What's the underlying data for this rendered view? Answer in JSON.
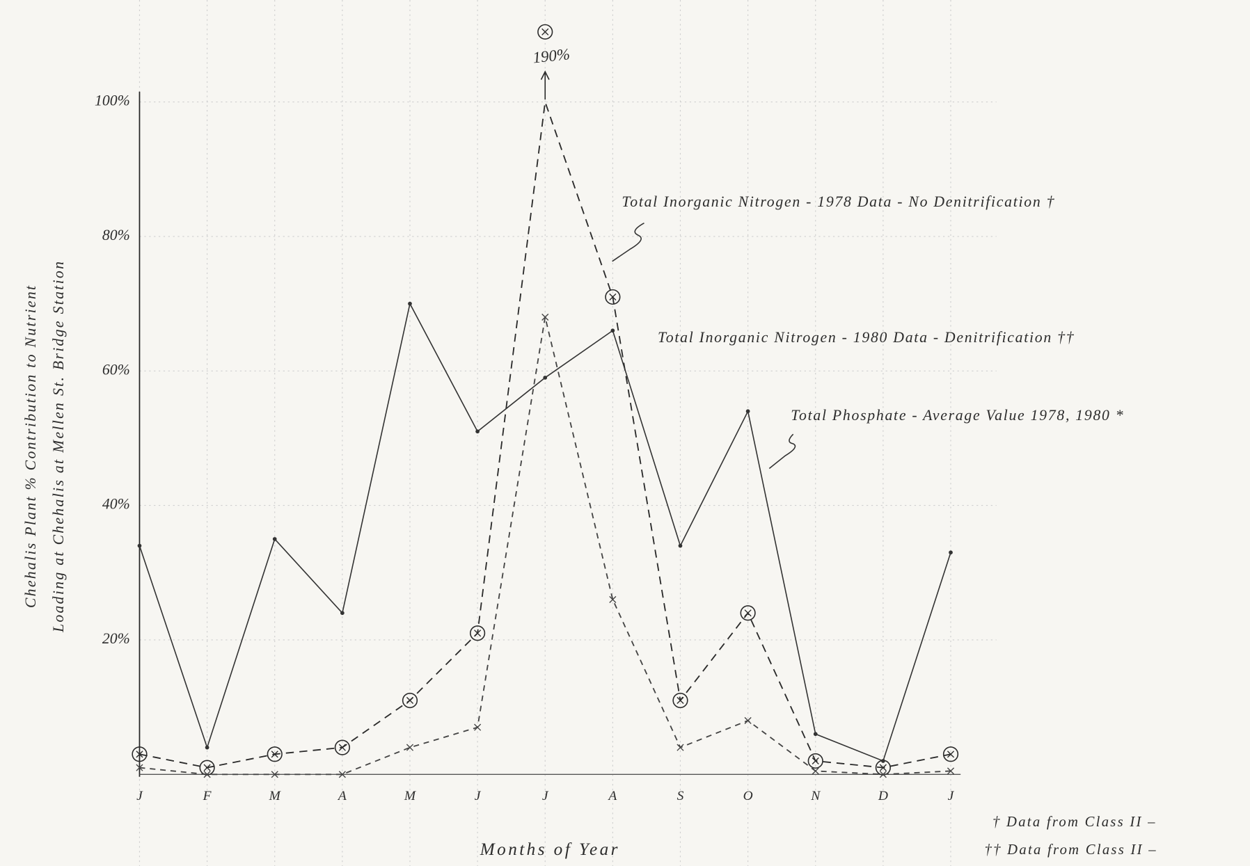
{
  "chart_data": {
    "type": "line",
    "x_label": "Months of Year",
    "y_label": [
      "Chehalis Plant % Contribution to Nutrient",
      "Loading at Chehalis at Mellen St. Bridge Station"
    ],
    "categories": [
      "J",
      "F",
      "M",
      "A",
      "M",
      "J",
      "J",
      "A",
      "S",
      "O",
      "N",
      "D",
      "J"
    ],
    "ylim": [
      0,
      100
    ],
    "yticks": [
      {
        "value": 20,
        "label": "20%"
      },
      {
        "value": 40,
        "label": "40%"
      },
      {
        "value": 60,
        "label": "60%"
      },
      {
        "value": 80,
        "label": "80%"
      },
      {
        "value": 100,
        "label": "100%"
      }
    ],
    "grid": true,
    "series": [
      {
        "name": "Total Inorganic Nitrogen - 1978 Data - No Denitrification †",
        "color": "#2a2a2a",
        "line_style": "dashed",
        "marker": "circled-x",
        "values": [
          3,
          1,
          3,
          4,
          11,
          21,
          190,
          71,
          11,
          24,
          2,
          1,
          3
        ],
        "value_labels": [
          null,
          null,
          null,
          null,
          null,
          null,
          "190%",
          null,
          null,
          null,
          null,
          null,
          null
        ]
      },
      {
        "name": "Total Inorganic Nitrogen - 1980 Data - Denitrification ††",
        "color": "#444444",
        "line_style": "dashed-light",
        "marker": "x",
        "values": [
          1,
          0,
          0,
          0,
          4,
          7,
          68,
          26,
          4,
          8,
          0.5,
          0,
          0.5
        ]
      },
      {
        "name": "Total Phosphate - Average Value 1978, 1980 *",
        "color": "#333333",
        "line_style": "solid",
        "marker": "dot",
        "values": [
          34,
          4,
          35,
          24,
          70,
          51,
          59,
          66,
          34,
          54,
          6,
          2,
          33
        ]
      }
    ],
    "footnotes": [
      "† Data from Class II –",
      "†† Data from Class II –"
    ]
  }
}
